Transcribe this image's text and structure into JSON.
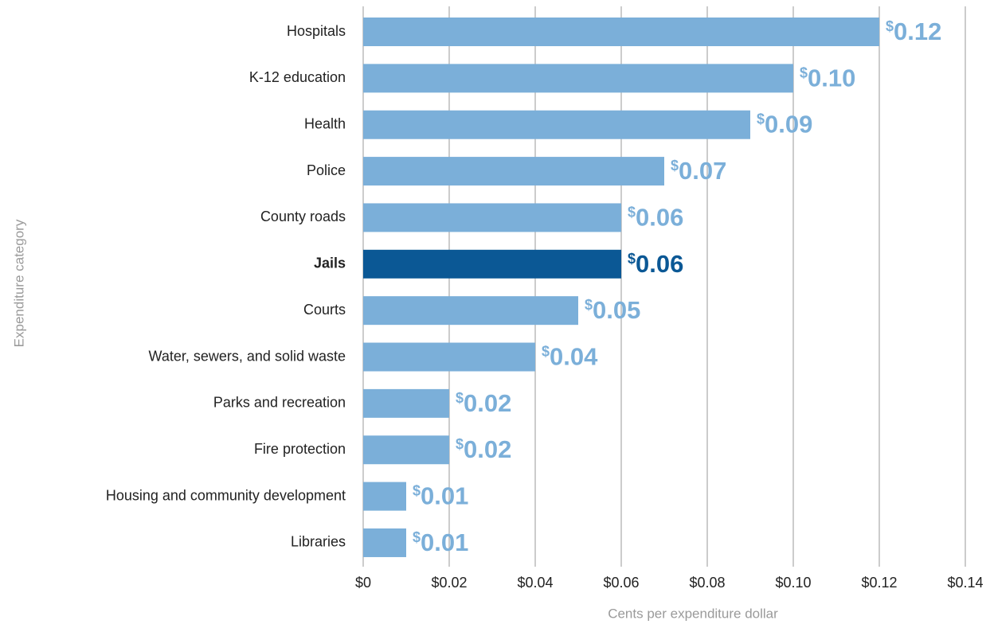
{
  "chart_data": {
    "type": "bar",
    "orientation": "horizontal",
    "categories": [
      "Hospitals",
      "K-12 education",
      "Health",
      "Police",
      "County roads",
      "Jails",
      "Courts",
      "Water, sewers, and solid waste",
      "Parks and recreation",
      "Fire protection",
      "Housing and community development",
      "Libraries"
    ],
    "values": [
      0.12,
      0.1,
      0.09,
      0.07,
      0.06,
      0.06,
      0.05,
      0.04,
      0.02,
      0.02,
      0.01,
      0.01
    ],
    "value_labels": [
      "$0.12",
      "$0.10",
      "$0.09",
      "$0.07",
      "$0.06",
      "$0.06",
      "$0.05",
      "$0.04",
      "$0.02",
      "$0.02",
      "$0.01",
      "$0.01"
    ],
    "color": "#7bafd9",
    "highlight": "Jails",
    "highlight_color": "#0b5895",
    "xlim": [
      0,
      0.14
    ],
    "xticks": [
      {
        "value": 0,
        "label": "$0"
      },
      {
        "value": 0.02,
        "label": "$0.02"
      },
      {
        "value": 0.04,
        "label": "$0.04"
      },
      {
        "value": 0.06,
        "label": "$0.06"
      },
      {
        "value": 0.08,
        "label": "$0.08"
      },
      {
        "value": 0.1,
        "label": "$0.10"
      },
      {
        "value": 0.12,
        "label": "$0.12"
      },
      {
        "value": 0.14,
        "label": "$0.14"
      }
    ],
    "grid": true,
    "xlabel": "Cents per expenditure dollar",
    "ylabel": "Expenditure category"
  }
}
